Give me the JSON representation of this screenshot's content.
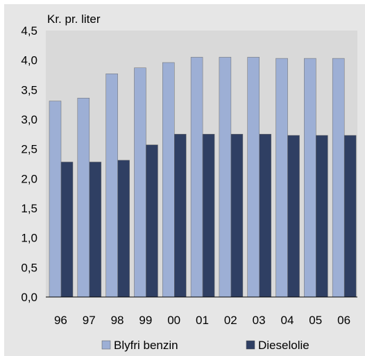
{
  "chart_data": {
    "type": "bar",
    "unit_label": "Kr. pr. liter",
    "categories": [
      "96",
      "97",
      "98",
      "99",
      "00",
      "01",
      "02",
      "03",
      "04",
      "05",
      "06"
    ],
    "series": [
      {
        "name": "Blyfri benzin",
        "color": "#9dafd5",
        "values": [
          3.31,
          3.36,
          3.77,
          3.87,
          3.96,
          4.05,
          4.05,
          4.05,
          4.03,
          4.03,
          4.03
        ]
      },
      {
        "name": "Dieselolie",
        "color": "#2f3f63",
        "values": [
          2.28,
          2.28,
          2.31,
          2.57,
          2.75,
          2.75,
          2.75,
          2.75,
          2.73,
          2.73,
          2.73
        ]
      }
    ],
    "ylim": [
      0,
      4.5
    ],
    "yticks": [
      "0,0",
      "0,5",
      "1,0",
      "1,5",
      "2,0",
      "2,5",
      "3,0",
      "3,5",
      "4,0",
      "4,5"
    ],
    "grid": false,
    "legend_position": "bottom"
  }
}
